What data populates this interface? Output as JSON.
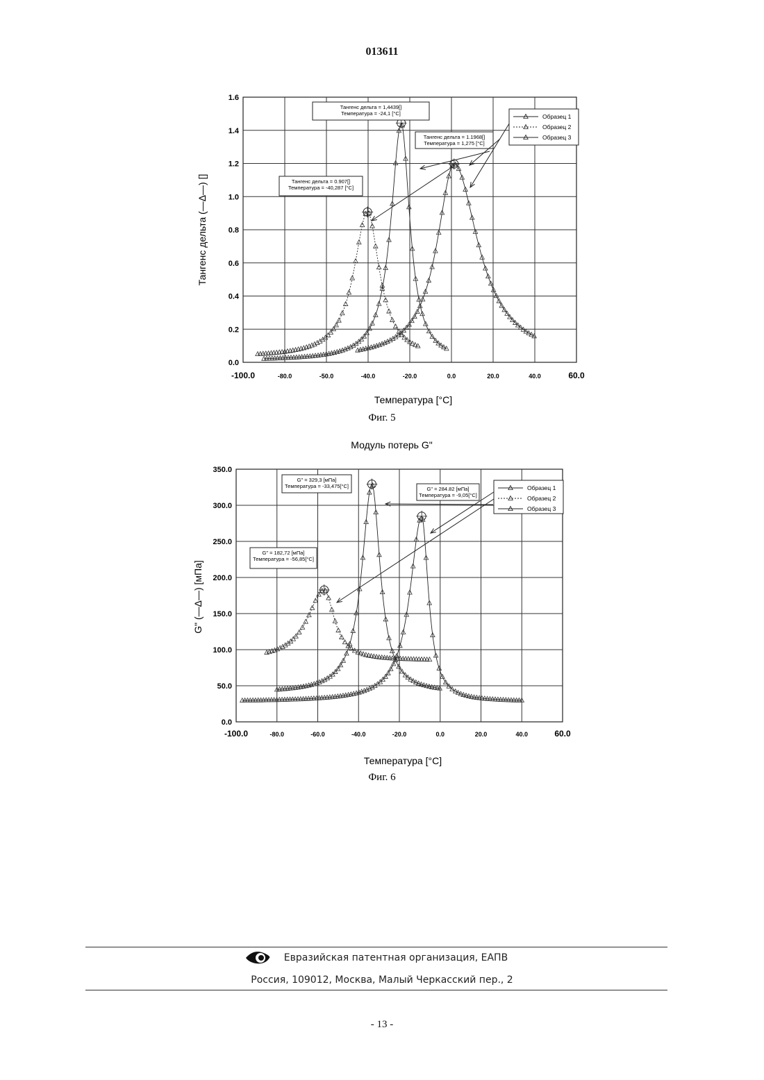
{
  "header": {
    "doc_number": "013611"
  },
  "chart_data": [
    {
      "type": "line",
      "title": "",
      "caption": "Фиг. 5",
      "xlabel": "Температура [°C]",
      "ylabel": "Тангенс дельта (—Δ—) []",
      "xlim": [
        -100,
        60
      ],
      "ylim": [
        0,
        1.6
      ],
      "x_ticks": [
        "-100.0",
        "-80.0",
        "-50.0",
        "-40.0",
        "-20.0",
        "0.0",
        "20.0",
        "40.0",
        "60.0"
      ],
      "y_ticks": [
        "0.0",
        "0.2",
        "0.4",
        "0.6",
        "0.8",
        "1.0",
        "1.2",
        "1.4",
        "1.6"
      ],
      "grid": true,
      "legend_position": "top-right",
      "series": [
        {
          "name": "Образец 1",
          "peak_x": -24.1,
          "peak_y": 1.4439,
          "width_left": 6,
          "width_right": 5,
          "min_x": -90,
          "max_x": -2,
          "base": 0.01
        },
        {
          "name": "Образец 2",
          "peak_x": -40.287,
          "peak_y": 0.907,
          "width_left": 8,
          "width_right": 7,
          "min_x": -93,
          "max_x": -15,
          "base": 0.03
        },
        {
          "name": "Образец 3",
          "peak_x": 1.275,
          "peak_y": 1.1968,
          "width_left": 10,
          "width_right": 14,
          "min_x": -45,
          "max_x": 40,
          "base": 0.02
        }
      ],
      "annotations": [
        {
          "text": [
            "Тангенс дельта = 1,4439[]",
            "Температура = -24,1 [°C]"
          ]
        },
        {
          "text": [
            "Тангенс дельта = 1.1968[]",
            "Температура = 1,275 [°C]"
          ]
        },
        {
          "text": [
            "Тангенс дельта = 0.907[]",
            "Температура = -40,287 [°C]"
          ]
        }
      ]
    },
    {
      "type": "line",
      "title": "Модуль потерь G\"",
      "caption": "Фиг. 6",
      "xlabel": "Температура [°C]",
      "ylabel": "G\" (—Δ—) [мПа]",
      "xlim": [
        -100,
        60
      ],
      "ylim": [
        0,
        350
      ],
      "x_ticks": [
        "-100.0",
        "-80.0",
        "-60.0",
        "-40.0",
        "-20.0",
        "0.0",
        "20.0",
        "40.0",
        "60.0"
      ],
      "y_ticks": [
        "0.0",
        "50.0",
        "100.0",
        "150.0",
        "200.0",
        "250.0",
        "300.0",
        "350.0"
      ],
      "grid": true,
      "legend_position": "top-right",
      "series": [
        {
          "name": "Образец 1",
          "peak_x": -33.475,
          "peak_y": 329.3,
          "width_left": 6,
          "width_right": 5,
          "min_x": -80,
          "max_x": 0,
          "base": 40
        },
        {
          "name": "Образец 2",
          "peak_x": -56.85,
          "peak_y": 182.72,
          "width_left": 10,
          "width_right": 6,
          "min_x": -85,
          "max_x": -5,
          "base": 85
        },
        {
          "name": "Образец 3",
          "peak_x": -9.05,
          "peak_y": 284.82,
          "width_left": 7,
          "width_right": 4,
          "min_x": -97,
          "max_x": 40,
          "base": 28
        }
      ],
      "annotations": [
        {
          "text": [
            "G\" = 329,3 [мПа]",
            "Температура = -33,475[°C]"
          ]
        },
        {
          "text": [
            "G\" = 284.82 [мПа]",
            "Температура = -9,05[°C]"
          ]
        },
        {
          "text": [
            "G\" = 182,72 [мПа]",
            "Температура = -56,85[°C]"
          ]
        }
      ]
    }
  ],
  "footer": {
    "org": "Евразийская патентная организация, ЕАПВ",
    "address": "Россия, 109012, Москва, Малый Черкасский пер., 2",
    "logo_icon": "eye-icon"
  },
  "page_number": "- 13 -"
}
